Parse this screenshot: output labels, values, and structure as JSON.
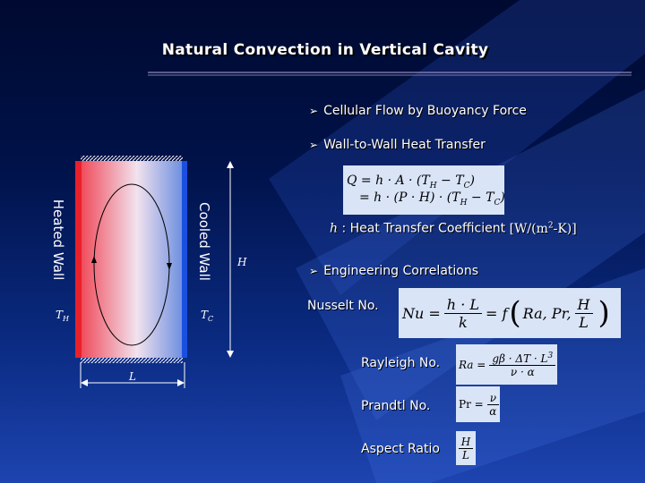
{
  "title": "Natural Convection in Vertical Cavity",
  "bullets": [
    "Cellular Flow by Buoyancy Force",
    "Wall-to-Wall Heat Transfer",
    "Engineering Correlations"
  ],
  "heat_transfer": {
    "line1": [
      "Q = h · A · (T",
      "H",
      " − T",
      "C",
      ")"
    ],
    "line2": [
      "= h · (P · H) · (T",
      "H",
      " − T",
      "C",
      ")"
    ]
  },
  "coefficient": {
    "symbol": "h",
    "text": ": Heat Transfer Coefficient",
    "unit": [
      "[W/(m",
      "2",
      "-K)]"
    ]
  },
  "nusselt": {
    "label": "Nusselt No.",
    "lhs": "Nu =",
    "num": "h · L",
    "den": "k",
    "mid": "= f",
    "open": "(",
    "args": "Ra, Pr,",
    "frac_num": "H",
    "frac_den": "L",
    "close": ")"
  },
  "rayleigh": {
    "label": "Rayleigh No.",
    "lhs": "Ra =",
    "num": [
      "gβ · ΔT · L",
      "3"
    ],
    "den": "ν · α"
  },
  "prandtl": {
    "label": "Prandtl No.",
    "lhs": "Pr =",
    "num": "ν",
    "den": "α"
  },
  "aspect": {
    "label": "Aspect Ratio",
    "num": "H",
    "den": "L"
  },
  "diagram": {
    "heated": "Heated Wall",
    "cooled": "Cooled Wall",
    "t_hot": [
      "T",
      "H"
    ],
    "t_cold": [
      "T",
      "C"
    ],
    "height": "H",
    "width": "L"
  }
}
